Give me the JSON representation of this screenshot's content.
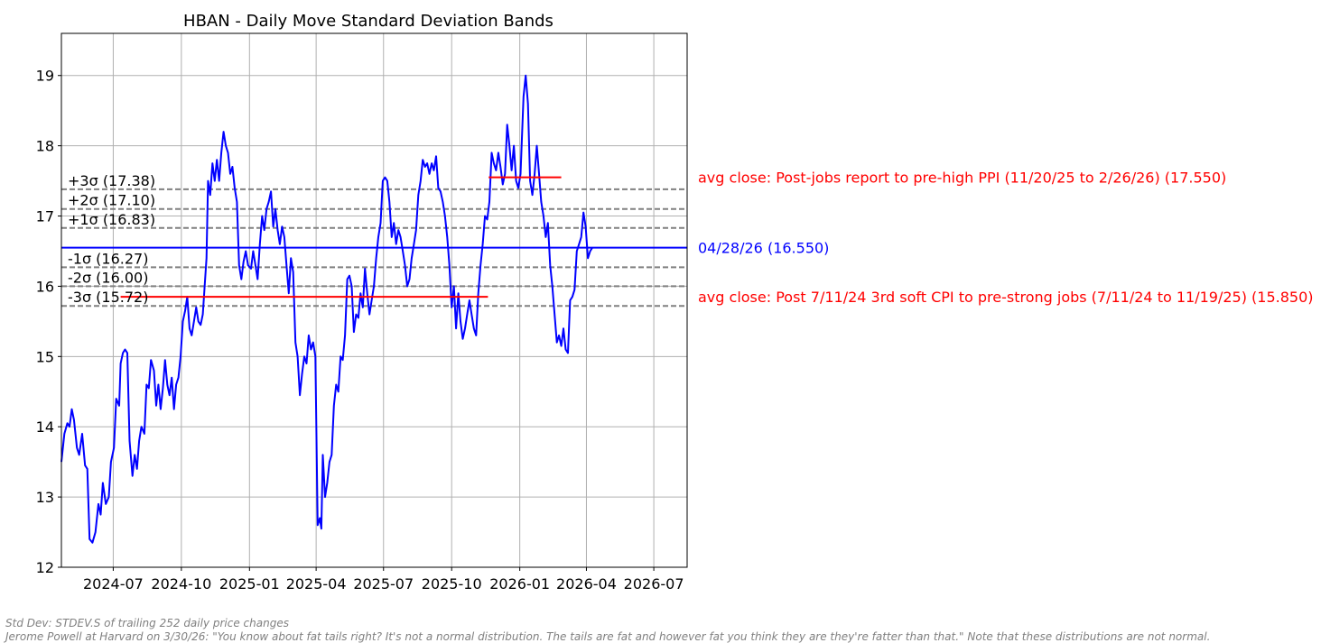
{
  "chart_data": {
    "type": "line",
    "title": "HBAN - Daily Move Standard Deviation Bands",
    "xlabel": "",
    "ylabel": "",
    "xlim": [
      "2024-04-22",
      "2026-08-15"
    ],
    "ylim": [
      12,
      19.6
    ],
    "grid": true,
    "x_ticks": [
      "2024-07",
      "2024-10",
      "2025-01",
      "2025-04",
      "2025-07",
      "2025-10",
      "2026-01",
      "2026-04",
      "2026-07"
    ],
    "y_ticks": [
      12,
      13,
      14,
      15,
      16,
      17,
      18,
      19
    ],
    "sigma_bands": [
      {
        "label": "+3σ (17.38)",
        "value": 17.38
      },
      {
        "label": "+2σ (17.10)",
        "value": 17.1
      },
      {
        "label": "+1σ (16.83)",
        "value": 16.83
      },
      {
        "label": "-1σ (16.27)",
        "value": 16.27
      },
      {
        "label": "-2σ (16.00)",
        "value": 16.0
      },
      {
        "label": "-3σ (15.72)",
        "value": 15.72
      }
    ],
    "reference_lines": [
      {
        "label": "04/28/26 (16.550)",
        "value": 16.55,
        "color": "#0000ff"
      }
    ],
    "segments": [
      {
        "label": "avg close: Post 7/11/24 3rd soft CPI to pre-strong jobs (7/11/24 to 11/19/25) (15.850)",
        "value": 15.85,
        "start": "2024-07-11",
        "end": "2025-11-19",
        "color": "#ff0000"
      },
      {
        "label": "avg close: Post-jobs report to pre-high PPI (11/20/25 to 2/26/26) (17.550)",
        "value": 17.55,
        "start": "2025-11-20",
        "end": "2026-02-26",
        "color": "#ff0000"
      }
    ],
    "series": [
      {
        "color": "#0000ff",
        "points": [
          [
            "2024-04-22",
            13.5
          ],
          [
            "2024-04-26",
            13.9
          ],
          [
            "2024-04-30",
            14.05
          ],
          [
            "2024-05-03",
            14.0
          ],
          [
            "2024-05-06",
            14.25
          ],
          [
            "2024-05-09",
            14.1
          ],
          [
            "2024-05-13",
            13.7
          ],
          [
            "2024-05-16",
            13.6
          ],
          [
            "2024-05-20",
            13.9
          ],
          [
            "2024-05-24",
            13.45
          ],
          [
            "2024-05-27",
            13.4
          ],
          [
            "2024-05-30",
            12.4
          ],
          [
            "2024-06-03",
            12.35
          ],
          [
            "2024-06-07",
            12.5
          ],
          [
            "2024-06-11",
            12.9
          ],
          [
            "2024-06-14",
            12.75
          ],
          [
            "2024-06-17",
            13.2
          ],
          [
            "2024-06-21",
            12.9
          ],
          [
            "2024-06-25",
            13.0
          ],
          [
            "2024-06-28",
            13.5
          ],
          [
            "2024-07-02",
            13.7
          ],
          [
            "2024-07-05",
            14.4
          ],
          [
            "2024-07-09",
            14.3
          ],
          [
            "2024-07-11",
            14.9
          ],
          [
            "2024-07-14",
            15.05
          ],
          [
            "2024-07-17",
            15.1
          ],
          [
            "2024-07-20",
            15.05
          ],
          [
            "2024-07-23",
            13.8
          ],
          [
            "2024-07-27",
            13.3
          ],
          [
            "2024-07-30",
            13.6
          ],
          [
            "2024-08-02",
            13.4
          ],
          [
            "2024-08-05",
            13.8
          ],
          [
            "2024-08-08",
            14.0
          ],
          [
            "2024-08-12",
            13.9
          ],
          [
            "2024-08-15",
            14.6
          ],
          [
            "2024-08-18",
            14.55
          ],
          [
            "2024-08-21",
            14.95
          ],
          [
            "2024-08-25",
            14.8
          ],
          [
            "2024-08-28",
            14.3
          ],
          [
            "2024-08-31",
            14.6
          ],
          [
            "2024-09-03",
            14.25
          ],
          [
            "2024-09-06",
            14.55
          ],
          [
            "2024-09-09",
            14.95
          ],
          [
            "2024-09-12",
            14.6
          ],
          [
            "2024-09-15",
            14.45
          ],
          [
            "2024-09-18",
            14.7
          ],
          [
            "2024-09-21",
            14.25
          ],
          [
            "2024-09-24",
            14.6
          ],
          [
            "2024-09-27",
            14.7
          ],
          [
            "2024-09-30",
            15.0
          ],
          [
            "2024-10-03",
            15.5
          ],
          [
            "2024-10-06",
            15.65
          ],
          [
            "2024-10-09",
            15.85
          ],
          [
            "2024-10-12",
            15.4
          ],
          [
            "2024-10-15",
            15.3
          ],
          [
            "2024-10-18",
            15.5
          ],
          [
            "2024-10-21",
            15.7
          ],
          [
            "2024-10-24",
            15.5
          ],
          [
            "2024-10-27",
            15.45
          ],
          [
            "2024-10-30",
            15.6
          ],
          [
            "2024-11-04",
            16.4
          ],
          [
            "2024-11-06",
            17.5
          ],
          [
            "2024-11-09",
            17.3
          ],
          [
            "2024-11-12",
            17.75
          ],
          [
            "2024-11-15",
            17.5
          ],
          [
            "2024-11-18",
            17.8
          ],
          [
            "2024-11-21",
            17.5
          ],
          [
            "2024-11-24",
            17.9
          ],
          [
            "2024-11-27",
            18.2
          ],
          [
            "2024-11-30",
            18.0
          ],
          [
            "2024-12-03",
            17.9
          ],
          [
            "2024-12-06",
            17.6
          ],
          [
            "2024-12-09",
            17.7
          ],
          [
            "2024-12-12",
            17.4
          ],
          [
            "2024-12-15",
            17.2
          ],
          [
            "2024-12-18",
            16.3
          ],
          [
            "2024-12-21",
            16.1
          ],
          [
            "2024-12-24",
            16.35
          ],
          [
            "2024-12-27",
            16.5
          ],
          [
            "2024-12-30",
            16.3
          ],
          [
            "2025-01-03",
            16.25
          ],
          [
            "2025-01-06",
            16.5
          ],
          [
            "2025-01-09",
            16.3
          ],
          [
            "2025-01-12",
            16.1
          ],
          [
            "2025-01-15",
            16.6
          ],
          [
            "2025-01-18",
            17.0
          ],
          [
            "2025-01-21",
            16.8
          ],
          [
            "2025-01-24",
            17.1
          ],
          [
            "2025-01-27",
            17.2
          ],
          [
            "2025-01-30",
            17.35
          ],
          [
            "2025-02-02",
            16.85
          ],
          [
            "2025-02-05",
            17.1
          ],
          [
            "2025-02-08",
            16.8
          ],
          [
            "2025-02-11",
            16.6
          ],
          [
            "2025-02-14",
            16.85
          ],
          [
            "2025-02-17",
            16.7
          ],
          [
            "2025-02-20",
            16.3
          ],
          [
            "2025-02-23",
            15.9
          ],
          [
            "2025-02-26",
            16.4
          ],
          [
            "2025-03-01",
            16.2
          ],
          [
            "2025-03-04",
            15.2
          ],
          [
            "2025-03-07",
            15.0
          ],
          [
            "2025-03-10",
            14.45
          ],
          [
            "2025-03-13",
            14.75
          ],
          [
            "2025-03-16",
            15.0
          ],
          [
            "2025-03-19",
            14.9
          ],
          [
            "2025-03-22",
            15.3
          ],
          [
            "2025-03-25",
            15.1
          ],
          [
            "2025-03-28",
            15.2
          ],
          [
            "2025-03-31",
            15.0
          ],
          [
            "2025-04-03",
            12.6
          ],
          [
            "2025-04-06",
            12.7
          ],
          [
            "2025-04-08",
            12.55
          ],
          [
            "2025-04-10",
            13.6
          ],
          [
            "2025-04-13",
            13.0
          ],
          [
            "2025-04-16",
            13.2
          ],
          [
            "2025-04-19",
            13.5
          ],
          [
            "2025-04-22",
            13.6
          ],
          [
            "2025-04-25",
            14.3
          ],
          [
            "2025-04-28",
            14.6
          ],
          [
            "2025-05-01",
            14.5
          ],
          [
            "2025-05-04",
            15.0
          ],
          [
            "2025-05-07",
            14.95
          ],
          [
            "2025-05-10",
            15.3
          ],
          [
            "2025-05-13",
            16.1
          ],
          [
            "2025-05-16",
            16.15
          ],
          [
            "2025-05-19",
            16.0
          ],
          [
            "2025-05-22",
            15.35
          ],
          [
            "2025-05-25",
            15.6
          ],
          [
            "2025-05-28",
            15.55
          ],
          [
            "2025-05-31",
            15.9
          ],
          [
            "2025-06-03",
            15.7
          ],
          [
            "2025-06-06",
            16.25
          ],
          [
            "2025-06-09",
            15.9
          ],
          [
            "2025-06-12",
            15.6
          ],
          [
            "2025-06-15",
            15.8
          ],
          [
            "2025-06-18",
            16.0
          ],
          [
            "2025-06-21",
            16.4
          ],
          [
            "2025-06-24",
            16.7
          ],
          [
            "2025-06-27",
            16.9
          ],
          [
            "2025-06-30",
            17.5
          ],
          [
            "2025-07-03",
            17.55
          ],
          [
            "2025-07-06",
            17.5
          ],
          [
            "2025-07-09",
            17.2
          ],
          [
            "2025-07-12",
            16.7
          ],
          [
            "2025-07-15",
            16.9
          ],
          [
            "2025-07-18",
            16.6
          ],
          [
            "2025-07-21",
            16.8
          ],
          [
            "2025-07-24",
            16.7
          ],
          [
            "2025-07-27",
            16.5
          ],
          [
            "2025-07-30",
            16.3
          ],
          [
            "2025-08-02",
            16.0
          ],
          [
            "2025-08-05",
            16.1
          ],
          [
            "2025-08-08",
            16.4
          ],
          [
            "2025-08-11",
            16.6
          ],
          [
            "2025-08-14",
            16.8
          ],
          [
            "2025-08-17",
            17.3
          ],
          [
            "2025-08-20",
            17.5
          ],
          [
            "2025-08-23",
            17.8
          ],
          [
            "2025-08-26",
            17.7
          ],
          [
            "2025-08-29",
            17.75
          ],
          [
            "2025-09-01",
            17.6
          ],
          [
            "2025-09-04",
            17.75
          ],
          [
            "2025-09-07",
            17.65
          ],
          [
            "2025-09-10",
            17.85
          ],
          [
            "2025-09-13",
            17.4
          ],
          [
            "2025-09-16",
            17.35
          ],
          [
            "2025-09-19",
            17.2
          ],
          [
            "2025-09-22",
            17.0
          ],
          [
            "2025-09-25",
            16.7
          ],
          [
            "2025-09-28",
            16.3
          ],
          [
            "2025-10-01",
            15.7
          ],
          [
            "2025-10-04",
            16.0
          ],
          [
            "2025-10-07",
            15.4
          ],
          [
            "2025-10-10",
            15.9
          ],
          [
            "2025-10-13",
            15.5
          ],
          [
            "2025-10-16",
            15.25
          ],
          [
            "2025-10-19",
            15.4
          ],
          [
            "2025-10-22",
            15.6
          ],
          [
            "2025-10-25",
            15.8
          ],
          [
            "2025-10-28",
            15.6
          ],
          [
            "2025-10-31",
            15.4
          ],
          [
            "2025-11-03",
            15.3
          ],
          [
            "2025-11-06",
            15.9
          ],
          [
            "2025-11-09",
            16.3
          ],
          [
            "2025-11-12",
            16.6
          ],
          [
            "2025-11-15",
            17.0
          ],
          [
            "2025-11-18",
            16.95
          ],
          [
            "2025-11-21",
            17.2
          ],
          [
            "2025-11-24",
            17.9
          ],
          [
            "2025-11-27",
            17.75
          ],
          [
            "2025-11-30",
            17.65
          ],
          [
            "2025-12-03",
            17.9
          ],
          [
            "2025-12-06",
            17.7
          ],
          [
            "2025-12-09",
            17.45
          ],
          [
            "2025-12-12",
            17.6
          ],
          [
            "2025-12-15",
            18.3
          ],
          [
            "2025-12-18",
            18.0
          ],
          [
            "2025-12-21",
            17.65
          ],
          [
            "2025-12-24",
            18.0
          ],
          [
            "2025-12-27",
            17.5
          ],
          [
            "2025-12-30",
            17.4
          ],
          [
            "2026-01-02",
            17.6
          ],
          [
            "2026-01-06",
            18.7
          ],
          [
            "2026-01-09",
            19.0
          ],
          [
            "2026-01-12",
            18.6
          ],
          [
            "2026-01-15",
            17.5
          ],
          [
            "2026-01-18",
            17.3
          ],
          [
            "2026-01-21",
            17.6
          ],
          [
            "2026-01-24",
            18.0
          ],
          [
            "2026-01-27",
            17.6
          ],
          [
            "2026-01-30",
            17.2
          ],
          [
            "2026-02-02",
            17.0
          ],
          [
            "2026-02-05",
            16.7
          ],
          [
            "2026-02-08",
            16.9
          ],
          [
            "2026-02-11",
            16.3
          ],
          [
            "2026-02-14",
            16.0
          ],
          [
            "2026-02-17",
            15.6
          ],
          [
            "2026-02-20",
            15.2
          ],
          [
            "2026-02-23",
            15.3
          ],
          [
            "2026-02-26",
            15.15
          ],
          [
            "2026-03-01",
            15.4
          ],
          [
            "2026-03-04",
            15.1
          ],
          [
            "2026-03-07",
            15.05
          ],
          [
            "2026-03-10",
            15.8
          ],
          [
            "2026-03-13",
            15.85
          ],
          [
            "2026-03-16",
            15.95
          ],
          [
            "2026-03-19",
            16.5
          ],
          [
            "2026-03-22",
            16.6
          ],
          [
            "2026-03-25",
            16.7
          ],
          [
            "2026-03-28",
            17.05
          ],
          [
            "2026-03-31",
            16.85
          ],
          [
            "2026-04-03",
            16.4
          ],
          [
            "2026-04-06",
            16.5
          ],
          [
            "2026-04-09",
            16.55
          ]
        ]
      }
    ]
  },
  "footnotes": {
    "line1": "Std Dev: STDEV.S of trailing 252 daily price changes",
    "line2": "Jerome Powell at Harvard on 3/30/26: \"You know about fat tails right? It's not a normal distribution. The tails are fat and however fat you think they are they're fatter than that.\" Note that these distributions are not normal."
  }
}
